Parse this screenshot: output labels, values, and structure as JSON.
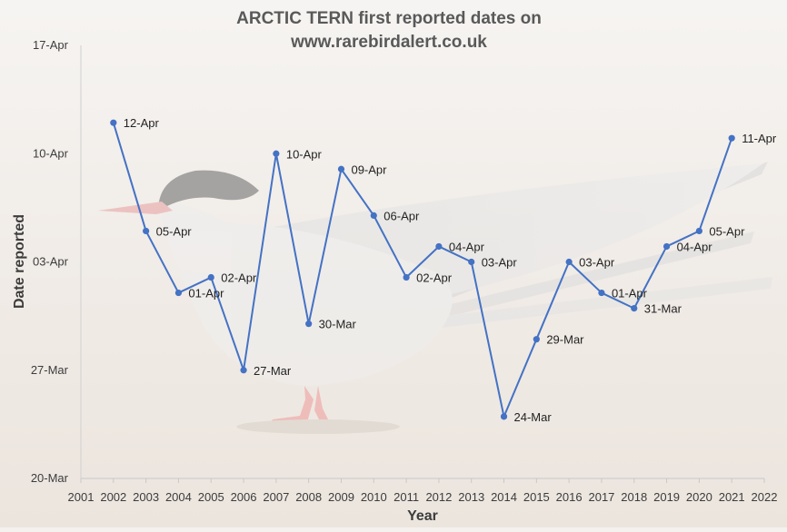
{
  "chart_data": {
    "type": "line",
    "title": [
      "ARCTIC TERN first reported dates on",
      "www.rarebirdalert.co.uk"
    ],
    "xlabel": "Year",
    "ylabel": "Date reported",
    "x_ticks": [
      2001,
      2002,
      2003,
      2004,
      2005,
      2006,
      2007,
      2008,
      2009,
      2010,
      2011,
      2012,
      2013,
      2014,
      2015,
      2016,
      2017,
      2018,
      2019,
      2020,
      2021,
      2022
    ],
    "y_ticks": [
      "20-Mar",
      "27-Mar",
      "03-Apr",
      "10-Apr",
      "17-Apr"
    ],
    "xlim": [
      2001,
      2022
    ],
    "ylim": [
      "20-Mar",
      "17-Apr"
    ],
    "grid": false,
    "legend": "none",
    "series_color": "#4472c4",
    "background_image": "arctic-tern-photo",
    "series": [
      {
        "x": [
          2002,
          2003,
          2004,
          2005,
          2006,
          2007,
          2008,
          2009,
          2010,
          2011,
          2012,
          2013,
          2014,
          2015,
          2016,
          2017,
          2018,
          2019,
          2020,
          2021
        ],
        "y": [
          "12-Apr",
          "05-Apr",
          "01-Apr",
          "02-Apr",
          "27-Mar",
          "10-Apr",
          "30-Mar",
          "09-Apr",
          "06-Apr",
          "02-Apr",
          "04-Apr",
          "03-Apr",
          "24-Mar",
          "29-Mar",
          "03-Apr",
          "01-Apr",
          "31-Mar",
          "04-Apr",
          "05-Apr",
          "11-Apr"
        ]
      }
    ]
  }
}
